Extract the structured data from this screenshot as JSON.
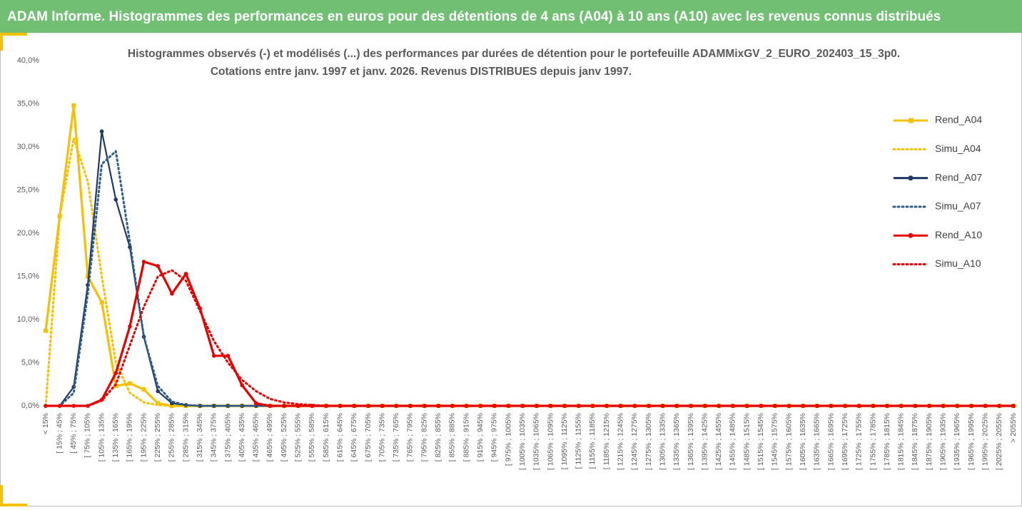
{
  "header": {
    "title": "ADAM Informe. Histogrammes des performances en euros pour des détentions de 4 ans (A04) à 10 ans (A10) avec les revenus connus distribués"
  },
  "chart_data": {
    "type": "line",
    "title": "Histogrammes observés (-) et modélisés (...) des performances par durées de détention pour  le portefeuille ADAMMixGV_2_EURO_202403_15_3p0.",
    "subtitle": "Cotations  entre janv. 1997 et janv. 2026. Revenus DISTRIBUES depuis janv 1997.",
    "categories": [
      "< 15%",
      "[ 15% ; 45%",
      "[ 45% ; 75%",
      "[ 75% ; 105%",
      "[ 105% ; 135%",
      "[ 135% ; 165%",
      "[ 165% ; 195%",
      "[ 195% ; 225%",
      "[ 225% ; 255%",
      "[ 255% ; 285%",
      "[ 285% ; 315%",
      "[ 315% ; 345%",
      "[ 345% ; 375%",
      "[ 375% ; 405%",
      "[ 405% ; 435%",
      "[ 435% ; 465%",
      "[ 465% ; 495%",
      "[ 495% ; 525%",
      "[ 525% ; 555%",
      "[ 555% ; 585%",
      "[ 585% ; 615%",
      "[ 615% ; 645%",
      "[ 645% ; 675%",
      "[ 675% ; 705%",
      "[ 705% ; 735%",
      "[ 735% ; 765%",
      "[ 765% ; 795%",
      "[ 795% ; 825%",
      "[ 825% ; 855%",
      "[ 855% ; 885%",
      "[ 885% ; 915%",
      "[ 915% ; 945%",
      "[ 945% ; 975%",
      "[ 975% ; 1005%",
      "[ 1005% ; 1035%",
      "[ 1035% ; 1065%",
      "[ 1065% ; 1095%",
      "[ 1095% ; 1125%",
      "[ 1125% ; 1155%",
      "[ 1155% ; 1185%",
      "[ 1185% ; 1215%",
      "[ 1215% ; 1245%",
      "[ 1245% ; 1275%",
      "[ 1275% ; 1305%",
      "[ 1305% ; 1335%",
      "[ 1335% ; 1365%",
      "[ 1365% ; 1395%",
      "[ 1395% ; 1425%",
      "[ 1425% ; 1455%",
      "[ 1455% ; 1485%",
      "[ 1485% ; 1515%",
      "[ 1515% ; 1545%",
      "[ 1545% ; 1575%",
      "[ 1575% ; 1605%",
      "[ 1605% ; 1635%",
      "[ 1635% ; 1665%",
      "[ 1665% ; 1695%",
      "[ 1695% ; 1725%",
      "[ 1725% ; 1755%",
      "[ 1755% ; 1785%",
      "[ 1785% ; 1815%",
      "[ 1815% ; 1845%",
      "[ 1845% ; 1875%",
      "[ 1875% ; 1905%",
      "[ 1905% ; 1935%",
      "[ 1935% ; 1965%",
      "[ 1965% ; 1995%",
      "[ 1995% ; 2025%",
      "[ 2025% ; 2055%",
      "> 2055%"
    ],
    "series": [
      {
        "name": "Rend_A04",
        "color": "#f5c000",
        "dashed": false,
        "marker": "square",
        "values": [
          8.7,
          22,
          34.8,
          15,
          12,
          2.3,
          2.6,
          1.9,
          0.3,
          0,
          0,
          0,
          0,
          0,
          0,
          0,
          0,
          0,
          0,
          0,
          0,
          0,
          0,
          0,
          0,
          0,
          0,
          0,
          0,
          0,
          0,
          0,
          0,
          0,
          0,
          0,
          0,
          0,
          0,
          0,
          0,
          0,
          0,
          0,
          0,
          0,
          0,
          0,
          0,
          0,
          0,
          0,
          0,
          0,
          0,
          0,
          0,
          0,
          0,
          0,
          0,
          0,
          0,
          0,
          0,
          0,
          0,
          0,
          0,
          0
        ]
      },
      {
        "name": "Simu_A04",
        "color": "#f5c000",
        "dashed": true,
        "marker": "none",
        "values": [
          0,
          22,
          31,
          26,
          15,
          5,
          1.5,
          0.4,
          0.1,
          0,
          0,
          0,
          0,
          0,
          0,
          0,
          0,
          0,
          0,
          0,
          0,
          0,
          0,
          0,
          0,
          0,
          0,
          0,
          0,
          0,
          0,
          0,
          0,
          0,
          0,
          0,
          0,
          0,
          0,
          0,
          0,
          0,
          0,
          0,
          0,
          0,
          0,
          0,
          0,
          0,
          0,
          0,
          0,
          0,
          0,
          0,
          0,
          0,
          0,
          0,
          0,
          0,
          0,
          0,
          0,
          0,
          0,
          0,
          0,
          0
        ]
      },
      {
        "name": "Rend_A07",
        "color": "#1f3864",
        "dashed": false,
        "marker": "circle",
        "values": [
          0,
          0,
          2.2,
          14,
          31.8,
          23.9,
          18.4,
          8,
          1.7,
          0.3,
          0.1,
          0,
          0,
          0,
          0,
          0,
          0,
          0,
          0,
          0,
          0,
          0,
          0,
          0,
          0,
          0,
          0,
          0,
          0,
          0,
          0,
          0,
          0,
          0,
          0,
          0,
          0,
          0,
          0,
          0,
          0,
          0,
          0,
          0,
          0,
          0,
          0,
          0,
          0,
          0,
          0,
          0,
          0,
          0,
          0,
          0,
          0,
          0,
          0,
          0,
          0,
          0,
          0,
          0,
          0,
          0,
          0,
          0,
          0,
          0
        ]
      },
      {
        "name": "Simu_A07",
        "color": "#2e5d8a",
        "dashed": true,
        "marker": "none",
        "values": [
          0,
          0,
          1.5,
          13,
          28,
          29.5,
          19,
          8,
          2.3,
          0.5,
          0.1,
          0,
          0,
          0,
          0,
          0,
          0,
          0,
          0,
          0,
          0,
          0,
          0,
          0,
          0,
          0,
          0,
          0,
          0,
          0,
          0,
          0,
          0,
          0,
          0,
          0,
          0,
          0,
          0,
          0,
          0,
          0,
          0,
          0,
          0,
          0,
          0,
          0,
          0,
          0,
          0,
          0,
          0,
          0,
          0,
          0,
          0,
          0,
          0,
          0,
          0,
          0,
          0,
          0,
          0,
          0,
          0,
          0,
          0,
          0
        ]
      },
      {
        "name": "Rend_A10",
        "color": "#e60000",
        "dashed": false,
        "marker": "circle",
        "values": [
          0,
          0,
          0,
          0,
          0.7,
          3.8,
          9.2,
          16.7,
          16.2,
          13,
          15.3,
          11.3,
          5.8,
          5.8,
          2.4,
          0.3,
          0,
          0,
          0,
          0,
          0,
          0,
          0,
          0,
          0,
          0,
          0,
          0,
          0,
          0,
          0,
          0,
          0,
          0,
          0,
          0,
          0,
          0,
          0,
          0,
          0,
          0,
          0,
          0,
          0,
          0,
          0,
          0,
          0,
          0,
          0,
          0,
          0,
          0,
          0,
          0,
          0,
          0,
          0,
          0,
          0,
          0,
          0,
          0,
          0,
          0,
          0,
          0,
          0,
          0
        ]
      },
      {
        "name": "Simu_A10",
        "color": "#e60000",
        "dashed": true,
        "marker": "none",
        "values": [
          0,
          0,
          0,
          0,
          0.6,
          2.5,
          7,
          11.5,
          15,
          15.7,
          14.5,
          11,
          7.5,
          5,
          3,
          1.7,
          0.8,
          0.4,
          0.2,
          0.1,
          0,
          0,
          0,
          0,
          0,
          0,
          0,
          0,
          0,
          0,
          0,
          0,
          0,
          0,
          0,
          0,
          0,
          0,
          0,
          0,
          0,
          0,
          0,
          0,
          0,
          0,
          0,
          0,
          0,
          0,
          0,
          0,
          0,
          0,
          0,
          0,
          0,
          0,
          0,
          0,
          0,
          0,
          0,
          0,
          0,
          0,
          0,
          0,
          0,
          0
        ]
      }
    ],
    "ylim": [
      0,
      40
    ],
    "yticks": [
      {
        "value": 0,
        "label": "0,0%"
      },
      {
        "value": 5,
        "label": "5,0%"
      },
      {
        "value": 10,
        "label": "10,0%"
      },
      {
        "value": 15,
        "label": "15,0%"
      },
      {
        "value": 20,
        "label": "20,0%"
      },
      {
        "value": 25,
        "label": "25,0%"
      },
      {
        "value": 30,
        "label": "30,0%"
      },
      {
        "value": 35,
        "label": "35,0%"
      },
      {
        "value": 40,
        "label": "40,0%"
      }
    ],
    "grid": false,
    "legend": "right"
  }
}
